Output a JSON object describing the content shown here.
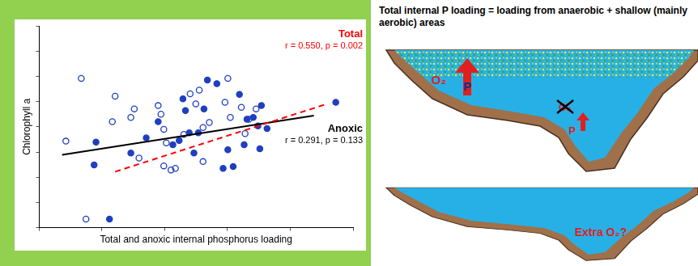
{
  "chart_data": {
    "type": "scatter",
    "x_label": "Total and anoxic internal phosphorus loading",
    "y_label": "Chlorophyll a",
    "xlim": [
      0,
      10
    ],
    "xticks": [
      0,
      2,
      4,
      6,
      8,
      10
    ],
    "ylim": [
      0,
      8
    ],
    "yticks": [
      0,
      1,
      2,
      3,
      4,
      5,
      6,
      7,
      8
    ],
    "grid": false,
    "tick_labels": false,
    "series": [
      {
        "type": "scatter",
        "color": "#1f3fbf",
        "marker": "open_circle",
        "x": [
          1.34,
          0.85,
          1.49,
          2.42,
          2.33,
          2.92,
          3.03,
          3.18,
          3.79,
          3.88,
          3.97,
          4.05,
          3.97,
          4.2,
          4.34,
          4.61,
          4.81,
          4.99,
          5.1,
          5.22,
          5.22,
          5.42,
          6.01,
          5.92,
          6.09,
          6.44,
          6.68,
          6.56,
          6.91
        ],
        "values": [
          5.92,
          3.43,
          0.34,
          5.21,
          4.2,
          4.37,
          4.71,
          2.76,
          4.84,
          4.5,
          3.9,
          3.36,
          2.45,
          2.29,
          2.35,
          3.7,
          5.31,
          4.91,
          5.45,
          3.97,
          2.62,
          4.17,
          5.92,
          4.97,
          4.37,
          4.77,
          4.3,
          3.73,
          4.71
        ]
      },
      {
        "type": "scatter",
        "color": "#1f3fbf",
        "marker": "filled_circle",
        "x": [
          1.81,
          1.75,
          2.24,
          2.92,
          3.41,
          3.79,
          4.26,
          4.46,
          4.58,
          4.66,
          4.78,
          4.93,
          5.07,
          5.25,
          5.36,
          5.66,
          5.86,
          6.01,
          6.18,
          6.38,
          6.53,
          6.62,
          6.82,
          6.97,
          7.08,
          7.26,
          7.03,
          9.45
        ],
        "values": [
          3.39,
          2.49,
          0.34,
          2.96,
          3.56,
          4.2,
          3.29,
          3.46,
          5.11,
          4.64,
          3.76,
          2.96,
          3.76,
          4.71,
          5.85,
          5.71,
          2.35,
          3.09,
          2.42,
          5.28,
          3.29,
          4.3,
          4.37,
          4.03,
          4.84,
          3.93,
          3.13,
          4.97
        ]
      },
      {
        "type": "line",
        "name": "Total",
        "stats": "r = 0.550, p = 0.002",
        "color": "#ff0000",
        "line_style": "dashed",
        "x": [
          2.42,
          9.18
        ],
        "values": [
          2.22,
          4.91
        ]
      },
      {
        "type": "line",
        "name": "Anoxic",
        "stats": "r = 0.291, p = 0.133",
        "color": "#000000",
        "line_style": "solid",
        "x": [
          0.73,
          8.75
        ],
        "values": [
          2.89,
          4.44
        ]
      }
    ]
  },
  "diagram": {
    "title": "Total internal P loading = loading from anaerobic + shallow (mainly aerobic) areas",
    "panels": [
      {
        "labels": [
          {
            "text": "O₂"
          },
          {
            "text": "P"
          },
          {
            "text": "O₂",
            "crossed": true
          },
          {
            "text": "P"
          }
        ]
      },
      {
        "labels": [
          {
            "text": "Extra O₂?"
          }
        ]
      }
    ]
  }
}
